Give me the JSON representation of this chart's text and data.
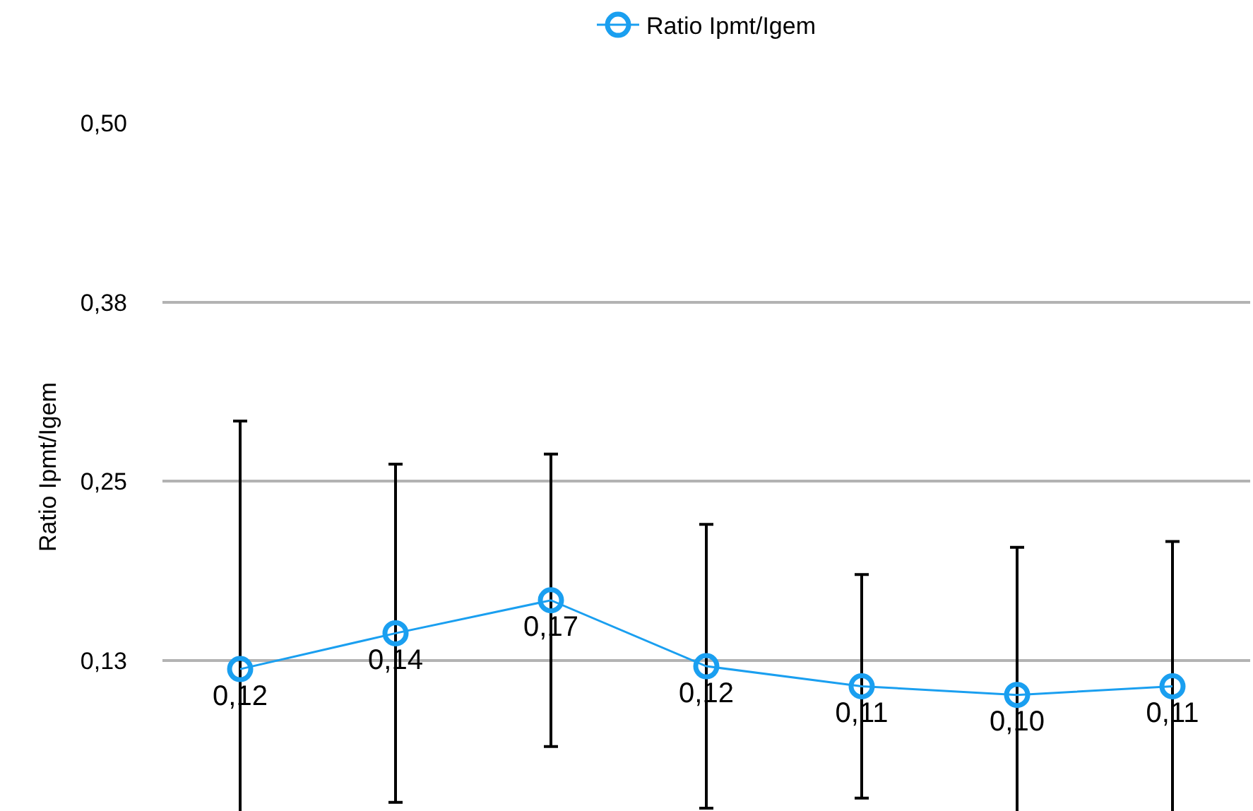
{
  "chart_data": {
    "type": "line",
    "ylabel": "Ratio Ipmt/Igem",
    "categories": [
      null,
      null,
      null,
      null,
      null,
      null,
      null
    ],
    "series": [
      {
        "name": "Ratio Ipmt/Igem",
        "color": "#1a9ff0",
        "values": [
          0.119,
          0.144,
          0.167,
          0.121,
          0.107,
          0.101,
          0.107
        ],
        "errors": [
          0.173,
          0.118,
          0.102,
          0.099,
          0.078,
          0.103,
          0.101
        ],
        "value_labels": [
          "0,12",
          "0,14",
          "0,17",
          "0,12",
          "0,11",
          "0,10",
          "0,11"
        ]
      }
    ],
    "ylim": [
      0.02,
      0.5
    ],
    "yticks": [
      {
        "value": 0.125,
        "label": "0,13"
      },
      {
        "value": 0.25,
        "label": "0,25"
      },
      {
        "value": 0.375,
        "label": "0,38"
      },
      {
        "value": 0.5,
        "label": "0,50"
      }
    ],
    "grid": "y",
    "legend": "top",
    "marker": "circle",
    "line_style": "solid",
    "tick_labels": "y"
  }
}
